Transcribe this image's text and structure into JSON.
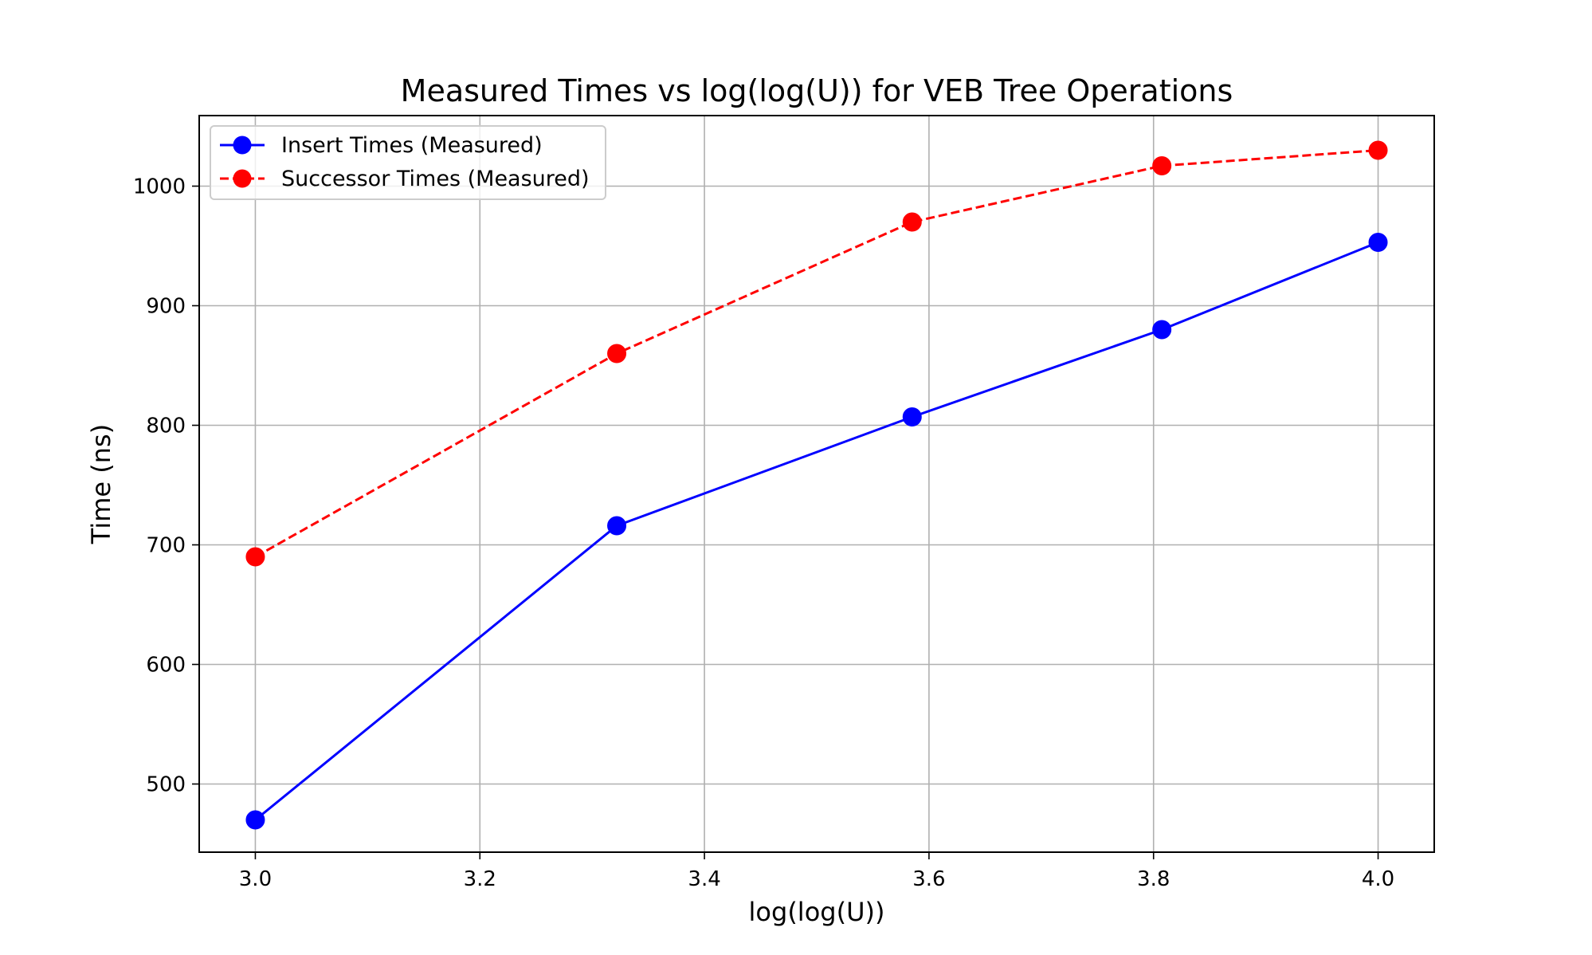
{
  "chart_data": {
    "type": "line",
    "title": "Measured Times vs log(log(U)) for VEB Tree Operations",
    "xlabel": "log(log(U))",
    "ylabel": "Time (ns)",
    "xlim": [
      2.95,
      4.05
    ],
    "ylim": [
      443,
      1059
    ],
    "x_ticks": [
      3.0,
      3.2,
      3.4,
      3.6,
      3.8,
      4.0
    ],
    "x_tick_labels": [
      "3.0",
      "3.2",
      "3.4",
      "3.6",
      "3.8",
      "4.0"
    ],
    "y_ticks": [
      500,
      600,
      700,
      800,
      900,
      1000
    ],
    "y_tick_labels": [
      "500",
      "600",
      "700",
      "800",
      "900",
      "1000"
    ],
    "grid": true,
    "legend_position": "upper-left",
    "x": [
      3.0,
      3.3219,
      3.585,
      3.8074,
      4.0
    ],
    "series": [
      {
        "name": "Insert Times (Measured)",
        "values": [
          470,
          716,
          807,
          880,
          953
        ],
        "color": "#0000ff",
        "line_style": "solid",
        "marker": "circle"
      },
      {
        "name": "Successor Times (Measured)",
        "values": [
          690,
          860,
          970,
          1017,
          1030
        ],
        "color": "#ff0000",
        "line_style": "dashed",
        "marker": "circle"
      }
    ]
  }
}
